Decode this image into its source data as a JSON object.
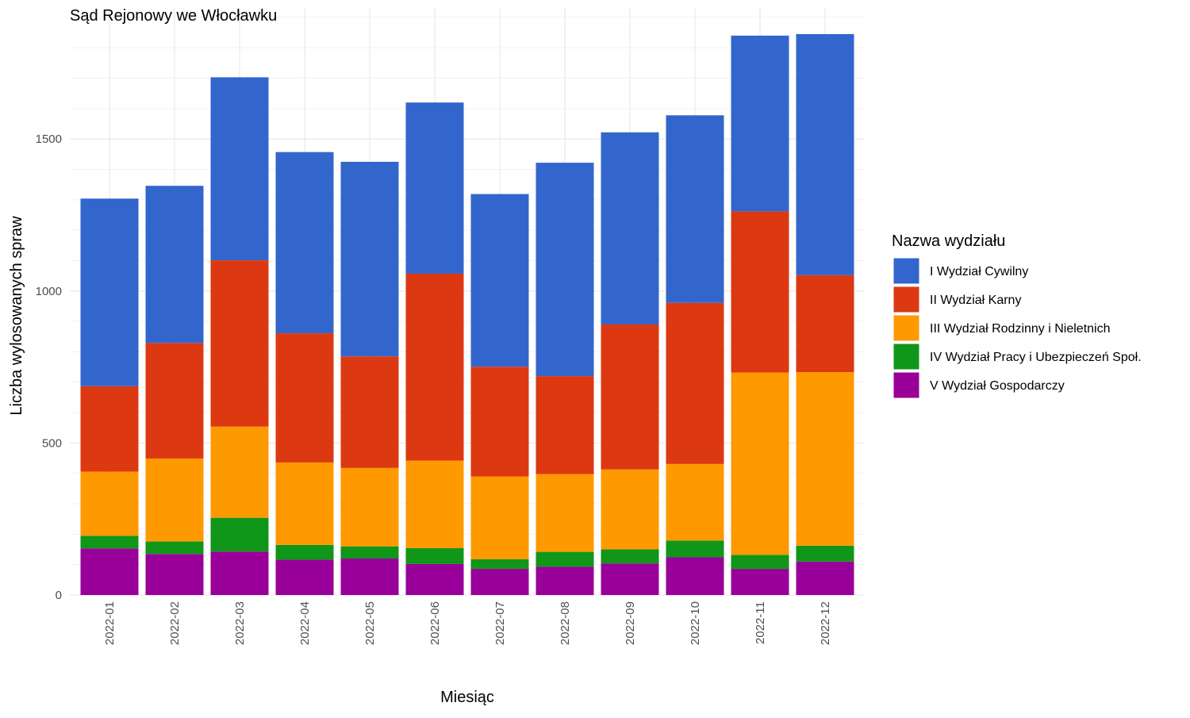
{
  "chart_data": {
    "type": "bar",
    "stacked": true,
    "title": "Sąd Rejonowy we Włocławku",
    "xlabel": "Miesiąc",
    "ylabel": "Liczba wylosowanych spraw",
    "ylim": [
      0,
      1925
    ],
    "yticks": [
      0,
      500,
      1000,
      1500
    ],
    "grid": true,
    "legend_position": "right",
    "legend_title": "Nazwa wydziału",
    "categories": [
      "2022-01",
      "2022-02",
      "2022-03",
      "2022-04",
      "2022-05",
      "2022-06",
      "2022-07",
      "2022-08",
      "2022-09",
      "2022-10",
      "2022-11",
      "2022-12"
    ],
    "series": [
      {
        "name": "V Wydział Gospodarczy",
        "color": "#990099",
        "values": [
          153,
          135,
          143,
          116,
          120,
          102,
          86,
          93,
          104,
          124,
          86,
          110
        ]
      },
      {
        "name": "IV Wydział Pracy i Ubezpieczeń Społ.",
        "color": "#109618",
        "values": [
          42,
          41,
          111,
          49,
          40,
          52,
          32,
          49,
          46,
          55,
          46,
          52
        ]
      },
      {
        "name": "III Wydział Rodzinny i Nieletnich",
        "color": "#ff9900",
        "values": [
          211,
          273,
          300,
          271,
          258,
          288,
          272,
          256,
          263,
          252,
          600,
          571
        ]
      },
      {
        "name": "II Wydział Karny",
        "color": "#dc3912",
        "values": [
          281,
          380,
          547,
          425,
          367,
          615,
          361,
          322,
          477,
          530,
          530,
          319
        ]
      },
      {
        "name": "I Wydział Cywilny",
        "color": "#3366cc",
        "values": [
          617,
          517,
          602,
          596,
          640,
          563,
          568,
          702,
          632,
          617,
          578,
          793
        ]
      }
    ],
    "legend_order": [
      "I Wydział Cywilny",
      "II Wydział Karny",
      "III Wydział Rodzinny i Nieletnich",
      "IV Wydział Pracy i Ubezpieczeń Społ.",
      "V Wydział Gospodarczy"
    ]
  }
}
